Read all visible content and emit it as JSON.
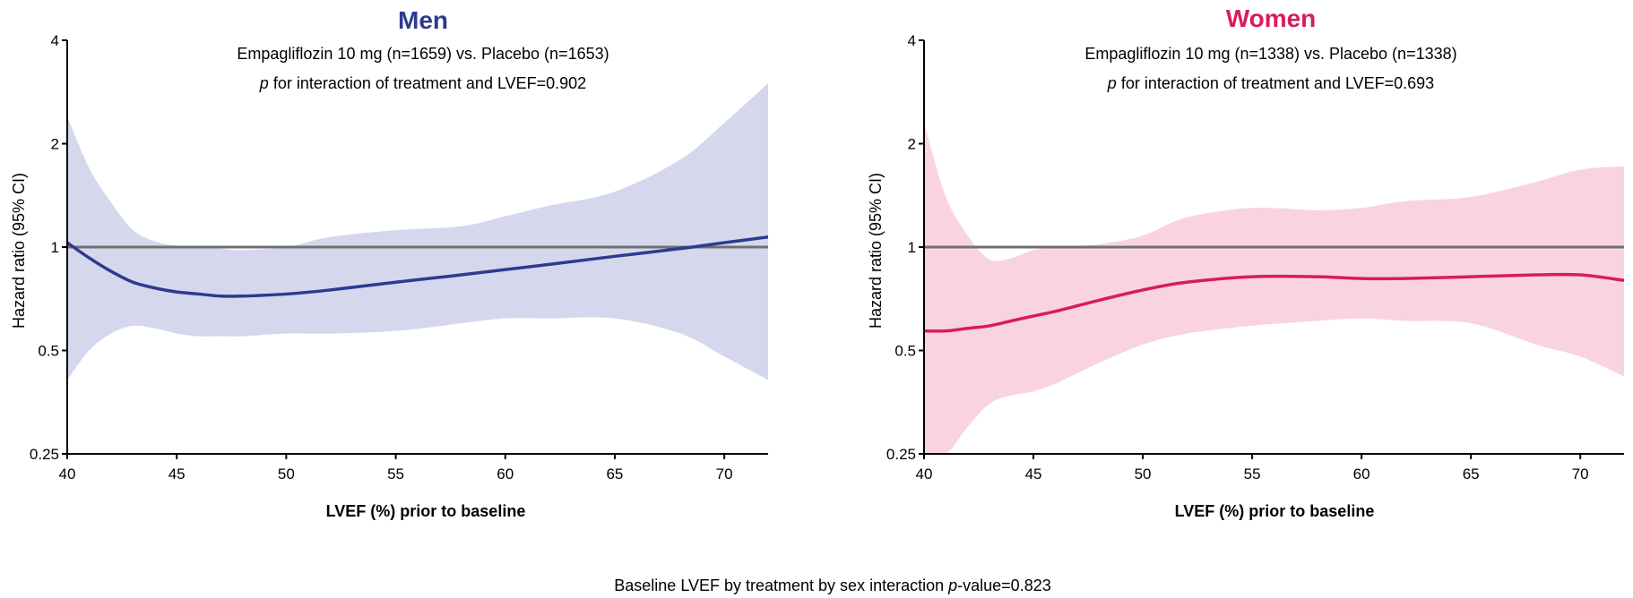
{
  "footer": {
    "prefix": "Baseline LVEF by treatment by sex interaction ",
    "p_italic": "p",
    "suffix": "-value=0.823"
  },
  "chart_data": [
    {
      "type": "line",
      "title": "Men",
      "title_color": "#2e3a8f",
      "line_color": "#2e3a8f",
      "band_color": "#d5d8ec",
      "subtitle": "Empagliflozin 10 mg (n=1659) vs. Placebo (n=1653)",
      "interaction_p_italic": "p",
      "interaction_text": " for interaction of treatment and LVEF=0.902",
      "xlabel": "LVEF (%) prior to baseline",
      "ylabel": "Hazard ratio (95% CI)",
      "y_scale": "log",
      "xlim": [
        40,
        72
      ],
      "ylim": [
        0.25,
        4
      ],
      "x_ticks": [
        40,
        45,
        50,
        55,
        60,
        65,
        70
      ],
      "y_ticks": [
        0.25,
        0.5,
        1,
        2,
        4
      ],
      "y_tick_labels": [
        "0.25",
        "0.5",
        "1",
        "2",
        "4"
      ],
      "reference_line": 1,
      "reference_color": "#707070",
      "series": [
        {
          "x": [
            40,
            41,
            42,
            43,
            44,
            45,
            46,
            47,
            48,
            50,
            52,
            55,
            58,
            60,
            62,
            65,
            68,
            70,
            72
          ],
          "estimate": [
            1.03,
            0.93,
            0.85,
            0.79,
            0.76,
            0.74,
            0.73,
            0.72,
            0.72,
            0.73,
            0.75,
            0.79,
            0.83,
            0.86,
            0.89,
            0.94,
            0.99,
            1.03,
            1.07
          ],
          "lower": [
            0.41,
            0.5,
            0.56,
            0.59,
            0.58,
            0.56,
            0.55,
            0.55,
            0.55,
            0.56,
            0.56,
            0.57,
            0.6,
            0.62,
            0.62,
            0.62,
            0.56,
            0.48,
            0.41
          ],
          "upper": [
            2.4,
            1.7,
            1.35,
            1.12,
            1.04,
            1.01,
            1.0,
            0.99,
            0.98,
            1.0,
            1.07,
            1.12,
            1.15,
            1.23,
            1.32,
            1.45,
            1.8,
            2.3,
            3.0
          ]
        }
      ]
    },
    {
      "type": "line",
      "title": "Women",
      "title_color": "#d81b60",
      "line_color": "#d81b60",
      "band_color": "#f9d4df",
      "subtitle": "Empagliflozin 10 mg (n=1338) vs. Placebo (n=1338)",
      "interaction_p_italic": "p",
      "interaction_text": " for interaction of treatment and LVEF=0.693",
      "xlabel": "LVEF (%) prior to baseline",
      "ylabel": "Hazard ratio (95% CI)",
      "y_scale": "log",
      "xlim": [
        40,
        72
      ],
      "ylim": [
        0.25,
        4
      ],
      "x_ticks": [
        40,
        45,
        50,
        55,
        60,
        65,
        70
      ],
      "y_ticks": [
        0.25,
        0.5,
        1,
        2,
        4
      ],
      "y_tick_labels": [
        "0.25",
        "0.5",
        "1",
        "2",
        "4"
      ],
      "reference_line": 1,
      "reference_color": "#707070",
      "series": [
        {
          "x": [
            40,
            41,
            42,
            43,
            44,
            45,
            46,
            48,
            50,
            52,
            55,
            58,
            60,
            62,
            65,
            68,
            70,
            72
          ],
          "estimate": [
            0.57,
            0.57,
            0.58,
            0.59,
            0.61,
            0.63,
            0.65,
            0.7,
            0.75,
            0.79,
            0.82,
            0.82,
            0.81,
            0.81,
            0.82,
            0.83,
            0.83,
            0.8
          ],
          "lower": [
            0.24,
            0.24,
            0.3,
            0.35,
            0.37,
            0.38,
            0.4,
            0.46,
            0.52,
            0.56,
            0.59,
            0.61,
            0.62,
            0.61,
            0.6,
            0.52,
            0.48,
            0.42
          ],
          "upper": [
            2.3,
            1.4,
            1.08,
            0.92,
            0.93,
            0.98,
            1.0,
            1.02,
            1.08,
            1.22,
            1.3,
            1.28,
            1.3,
            1.36,
            1.4,
            1.55,
            1.68,
            1.72
          ]
        }
      ]
    }
  ]
}
